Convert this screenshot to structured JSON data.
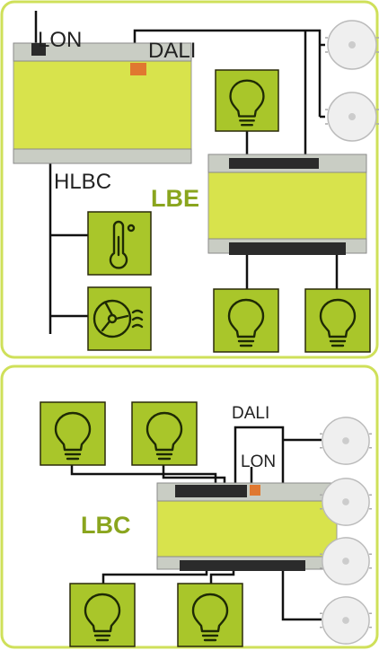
{
  "top": {
    "lon": "LON",
    "dali": "DALI",
    "hlbc": "HLBC",
    "lbe": "LBE"
  },
  "bottom": {
    "dali": "DALI",
    "lon": "LON",
    "lbc": "LBC"
  }
}
